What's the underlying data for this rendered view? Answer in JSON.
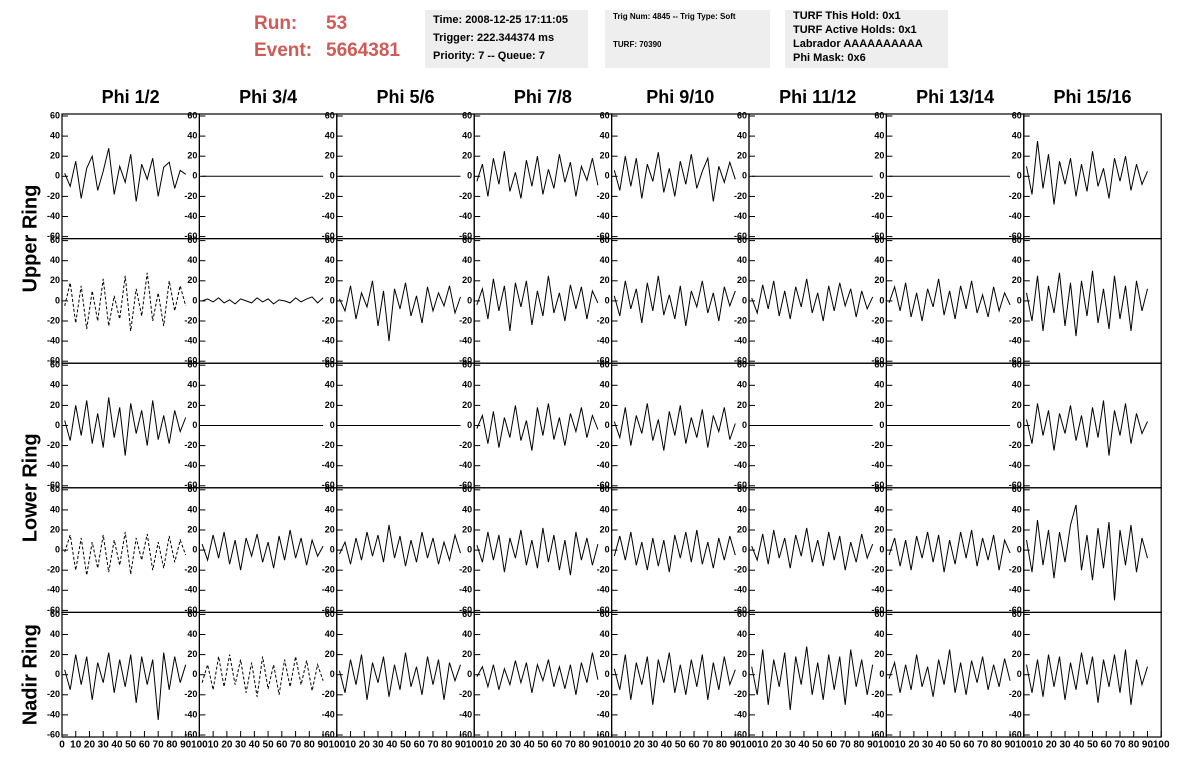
{
  "header": {
    "run_label": "Run:",
    "run": 53,
    "event_label": "Event:",
    "event": 5664381,
    "box1": [
      "Time: 2008-12-25 17:11:05",
      "Trigger: 222.344374 ms",
      "Priority: 7 -- Queue: 7"
    ],
    "box2": [
      "Trig Num: 4845 -- Trig Type: Soft",
      "TURF: 70390"
    ],
    "box3": [
      "TURF This Hold: 0x1",
      "TURF Active Holds: 0x1",
      "Labrador AAAAAAAAAA",
      "Phi Mask: 0x6"
    ]
  },
  "chart_data": {
    "type": "line",
    "color": "#000000",
    "columns": [
      "Phi 1/2",
      "Phi 3/4",
      "Phi 5/6",
      "Phi 7/8",
      "Phi 9/10",
      "Phi 11/12",
      "Phi 13/14",
      "Phi 15/16"
    ],
    "ring_labels": [
      "Upper Ring",
      "Lower Ring",
      "Nadir Ring"
    ],
    "xlim": [
      0,
      100
    ],
    "xticks": [
      0,
      10,
      20,
      30,
      40,
      50,
      60,
      70,
      80,
      90,
      100
    ],
    "ylim": [
      -62,
      62
    ],
    "yticks": [
      -60,
      -40,
      -20,
      0,
      20,
      40,
      60
    ],
    "x": [
      2,
      6,
      10,
      14,
      18,
      22,
      26,
      30,
      34,
      38,
      42,
      46,
      50,
      54,
      58,
      62,
      66,
      70,
      74,
      78,
      82,
      86,
      90
    ],
    "panels": [
      [
        {
          "values": [
            3,
            -10,
            15,
            -22,
            8,
            20,
            -14,
            5,
            28,
            -18,
            10,
            -6,
            22,
            -25,
            12,
            -3,
            18,
            -20,
            9,
            14,
            -12,
            6,
            2
          ]
        },
        {
          "values": [
            0,
            0,
            0,
            0,
            0,
            0,
            0,
            0,
            0,
            0,
            0,
            0,
            0,
            0,
            0,
            0,
            0,
            0,
            0,
            0,
            0,
            0,
            0
          ]
        },
        {
          "values": [
            0,
            0,
            0,
            0,
            0,
            0,
            0,
            0,
            0,
            0,
            0,
            0,
            0,
            0,
            0,
            0,
            0,
            0,
            0,
            0,
            0,
            0,
            0
          ]
        },
        {
          "values": [
            -5,
            12,
            -20,
            18,
            -8,
            25,
            -15,
            4,
            -22,
            16,
            -10,
            20,
            -18,
            7,
            -12,
            22,
            -6,
            14,
            -20,
            10,
            -4,
            18,
            -9
          ]
        },
        {
          "values": [
            6,
            -14,
            20,
            -10,
            18,
            -22,
            12,
            -5,
            24,
            -16,
            8,
            -20,
            15,
            -8,
            22,
            -12,
            5,
            18,
            -25,
            10,
            -6,
            14,
            -3
          ]
        },
        {
          "values": [
            0,
            0,
            0,
            0,
            0,
            0,
            0,
            0,
            0,
            0,
            0,
            0,
            0,
            0,
            0,
            0,
            0,
            0,
            0,
            0,
            0,
            0,
            0
          ]
        },
        {
          "values": [
            0,
            0,
            0,
            0,
            0,
            0,
            0,
            0,
            0,
            0,
            0,
            0,
            0,
            0,
            0,
            0,
            0,
            0,
            0,
            0,
            0,
            0,
            0
          ]
        },
        {
          "values": [
            10,
            -18,
            35,
            -12,
            22,
            -28,
            15,
            -8,
            18,
            -20,
            12,
            -15,
            25,
            -10,
            8,
            -22,
            18,
            -5,
            20,
            -14,
            12,
            -8,
            5
          ]
        }
      ],
      [
        {
          "dashed": true,
          "values": [
            -5,
            18,
            -22,
            15,
            -28,
            10,
            -20,
            22,
            -25,
            5,
            -18,
            25,
            -30,
            12,
            -15,
            28,
            -20,
            8,
            -25,
            20,
            -10,
            15,
            -5
          ]
        },
        {
          "values": [
            0,
            2,
            -1,
            3,
            -2,
            1,
            -3,
            2,
            0,
            -2,
            3,
            -1,
            2,
            -3,
            1,
            0,
            -2,
            3,
            -1,
            2,
            4,
            -2,
            3
          ]
        },
        {
          "values": [
            2,
            -10,
            15,
            -18,
            8,
            -6,
            20,
            -25,
            10,
            -40,
            12,
            -8,
            18,
            -15,
            5,
            -22,
            14,
            -10,
            8,
            -5,
            15,
            -12,
            4
          ]
        },
        {
          "values": [
            -4,
            12,
            -18,
            22,
            -10,
            15,
            -30,
            18,
            -6,
            20,
            -24,
            10,
            -15,
            25,
            -12,
            8,
            -20,
            16,
            -8,
            14,
            -18,
            10,
            -2
          ]
        },
        {
          "values": [
            5,
            -15,
            20,
            -8,
            12,
            -22,
            18,
            -10,
            25,
            -14,
            6,
            -18,
            15,
            -25,
            10,
            -6,
            20,
            -12,
            8,
            -20,
            14,
            -5,
            10
          ]
        },
        {
          "values": [
            3,
            -12,
            16,
            -8,
            20,
            -15,
            10,
            -18,
            14,
            -6,
            22,
            -12,
            8,
            -20,
            15,
            -10,
            18,
            -5,
            12,
            -16,
            10,
            -8,
            4
          ]
        },
        {
          "values": [
            -2,
            14,
            -10,
            18,
            -16,
            8,
            -20,
            12,
            -6,
            22,
            -14,
            10,
            -18,
            15,
            -8,
            20,
            -12,
            6,
            -16,
            14,
            -10,
            8,
            -4
          ]
        },
        {
          "values": [
            8,
            -20,
            25,
            -30,
            15,
            -12,
            28,
            -25,
            18,
            -35,
            20,
            -15,
            30,
            -22,
            12,
            -28,
            25,
            -18,
            15,
            -30,
            20,
            -10,
            12
          ]
        }
      ],
      [
        {
          "values": [
            5,
            -15,
            20,
            -10,
            25,
            -18,
            12,
            -22,
            28,
            -12,
            18,
            -30,
            22,
            -8,
            15,
            -20,
            25,
            -14,
            10,
            -18,
            15,
            -6,
            8
          ]
        },
        {
          "values": [
            0,
            0,
            0,
            0,
            0,
            0,
            0,
            0,
            0,
            0,
            0,
            0,
            0,
            0,
            0,
            0,
            0,
            0,
            0,
            0,
            0,
            0,
            0
          ]
        },
        {
          "values": [
            0,
            0,
            0,
            0,
            0,
            0,
            0,
            0,
            0,
            0,
            0,
            0,
            0,
            0,
            0,
            0,
            0,
            0,
            0,
            0,
            0,
            0,
            0
          ]
        },
        {
          "values": [
            -3,
            10,
            -18,
            14,
            -22,
            8,
            -12,
            20,
            -15,
            5,
            -25,
            18,
            -10,
            22,
            -14,
            8,
            -20,
            12,
            -6,
            18,
            -12,
            10,
            -4
          ]
        },
        {
          "values": [
            4,
            -12,
            18,
            -20,
            10,
            -8,
            22,
            -15,
            6,
            -25,
            14,
            -10,
            20,
            -18,
            8,
            -12,
            16,
            -22,
            10,
            -6,
            18,
            -14,
            2
          ]
        },
        {
          "values": [
            0,
            0,
            0,
            0,
            0,
            0,
            0,
            0,
            0,
            0,
            0,
            0,
            0,
            0,
            0,
            0,
            0,
            0,
            0,
            0,
            0,
            0,
            0
          ]
        },
        {
          "values": [
            0,
            0,
            0,
            0,
            0,
            0,
            0,
            0,
            0,
            0,
            0,
            0,
            0,
            0,
            0,
            0,
            0,
            0,
            0,
            0,
            0,
            0,
            0
          ]
        },
        {
          "values": [
            6,
            -18,
            22,
            -10,
            15,
            -25,
            12,
            -8,
            20,
            -15,
            10,
            -22,
            18,
            -12,
            25,
            -30,
            15,
            -10,
            22,
            -18,
            12,
            -8,
            4
          ]
        }
      ],
      [
        {
          "dashed": true,
          "values": [
            -2,
            15,
            -20,
            12,
            -25,
            8,
            -18,
            15,
            -22,
            10,
            -15,
            18,
            -24,
            12,
            -10,
            16,
            -20,
            8,
            -18,
            14,
            -12,
            10,
            -5
          ]
        },
        {
          "values": [
            6,
            -10,
            15,
            -8,
            18,
            -14,
            10,
            -20,
            12,
            -6,
            16,
            -12,
            8,
            -18,
            14,
            -10,
            20,
            -8,
            12,
            -15,
            10,
            -6,
            4
          ]
        },
        {
          "values": [
            -4,
            8,
            -14,
            12,
            -10,
            18,
            -6,
            15,
            -12,
            25,
            -8,
            14,
            -16,
            10,
            -12,
            18,
            -8,
            12,
            -14,
            8,
            -10,
            15,
            -3
          ]
        },
        {
          "values": [
            5,
            -12,
            18,
            -10,
            15,
            -22,
            12,
            -8,
            20,
            -15,
            10,
            -18,
            22,
            -12,
            15,
            -20,
            10,
            -25,
            18,
            -10,
            12,
            -15,
            6
          ]
        },
        {
          "values": [
            -6,
            14,
            -10,
            18,
            -15,
            8,
            -20,
            12,
            -16,
            10,
            -22,
            15,
            -8,
            18,
            -12,
            20,
            -14,
            8,
            -18,
            12,
            -10,
            14,
            -5
          ]
        },
        {
          "values": [
            4,
            -10,
            16,
            -14,
            20,
            -8,
            12,
            -18,
            15,
            -6,
            22,
            -12,
            10,
            -16,
            18,
            -10,
            14,
            -20,
            8,
            -12,
            16,
            -8,
            6
          ]
        },
        {
          "values": [
            -5,
            12,
            -16,
            10,
            -20,
            14,
            -8,
            18,
            -12,
            15,
            -22,
            10,
            -14,
            18,
            -8,
            20,
            -16,
            12,
            -10,
            15,
            -20,
            10,
            -3
          ]
        },
        {
          "values": [
            10,
            -22,
            30,
            -15,
            20,
            -28,
            18,
            -12,
            25,
            45,
            -20,
            15,
            -30,
            22,
            -18,
            28,
            -50,
            20,
            -15,
            25,
            -22,
            12,
            -8
          ]
        }
      ],
      [
        {
          "values": [
            5,
            -15,
            20,
            -10,
            18,
            -25,
            12,
            -8,
            22,
            -18,
            15,
            -12,
            20,
            -28,
            18,
            -10,
            15,
            -45,
            22,
            -15,
            18,
            -8,
            10
          ]
        },
        {
          "dashed": true,
          "values": [
            -8,
            10,
            -15,
            18,
            -12,
            20,
            -10,
            15,
            -18,
            12,
            -22,
            18,
            -14,
            10,
            -20,
            15,
            -12,
            18,
            -10,
            14,
            -16,
            10,
            -6
          ]
        },
        {
          "values": [
            4,
            -18,
            15,
            -10,
            20,
            -25,
            12,
            -8,
            18,
            -22,
            10,
            -15,
            22,
            -12,
            8,
            -20,
            18,
            -10,
            15,
            -25,
            12,
            -6,
            10
          ]
        },
        {
          "values": [
            -2,
            8,
            -12,
            10,
            -15,
            6,
            -10,
            14,
            -8,
            12,
            -18,
            10,
            -6,
            15,
            -12,
            8,
            -14,
            10,
            -20,
            12,
            -8,
            22,
            -5
          ]
        },
        {
          "values": [
            6,
            -15,
            20,
            -25,
            12,
            -10,
            18,
            -30,
            15,
            -8,
            22,
            -18,
            10,
            -20,
            15,
            -12,
            20,
            -25,
            12,
            -15,
            18,
            -10,
            5
          ]
        },
        {
          "values": [
            8,
            -20,
            25,
            -30,
            15,
            -12,
            22,
            -35,
            18,
            -10,
            28,
            -20,
            12,
            -25,
            20,
            -15,
            18,
            -30,
            25,
            -12,
            15,
            -20,
            10
          ]
        },
        {
          "values": [
            -4,
            12,
            -18,
            10,
            -15,
            20,
            -12,
            8,
            -22,
            15,
            -10,
            25,
            -18,
            12,
            -20,
            14,
            -8,
            18,
            -15,
            10,
            -12,
            16,
            -6
          ]
        },
        {
          "values": [
            10,
            -18,
            15,
            -22,
            20,
            -12,
            18,
            -25,
            12,
            -15,
            22,
            -10,
            18,
            -28,
            15,
            -12,
            20,
            -18,
            25,
            -30,
            15,
            -10,
            8
          ]
        }
      ]
    ]
  }
}
